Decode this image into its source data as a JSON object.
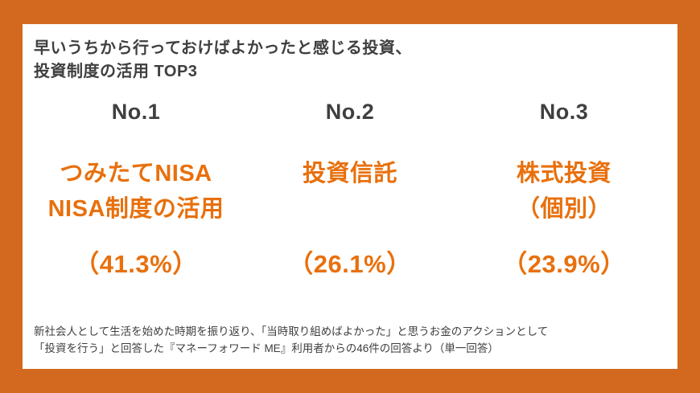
{
  "colors": {
    "frame": "#d2691e",
    "accent": "#e8700d",
    "text-dark": "#3f3f3f"
  },
  "title": {
    "line1": "早いうちから行っておけばよかったと感じる投資、",
    "line2": "投資制度の活用 TOP3"
  },
  "columns": [
    {
      "rank": "No.1",
      "name_line1": "つみたてNISA",
      "name_line2": "NISA制度の活用",
      "value": "（41.3%）"
    },
    {
      "rank": "No.2",
      "name_line1": "投資信託",
      "name_line2": "",
      "value": "（26.1%）"
    },
    {
      "rank": "No.3",
      "name_line1": "株式投資",
      "name_line2": "（個別）",
      "value": "（23.9%）"
    }
  ],
  "footnote": {
    "line1": "新社会人として生活を始めた時期を振り返り、「当時取り組めばよかった」と思うお金のアクションとして",
    "line2": "「投資を行う」と回答した『マネーフォワード ME』利用者からの46件の回答より（単一回答）"
  },
  "chart_data": {
    "type": "table",
    "title": "早いうちから行っておけばよかったと感じる投資、投資制度の活用 TOP3",
    "categories": [
      "つみたてNISA NISA制度の活用",
      "投資信託",
      "株式投資（個別）"
    ],
    "ranks": [
      "No.1",
      "No.2",
      "No.3"
    ],
    "values": [
      41.3,
      26.1,
      23.9
    ],
    "unit": "%",
    "note": "新社会人として生活を始めた時期を振り返り、「当時取り組めばよかった」と思うお金のアクションとして「投資を行う」と回答した『マネーフォワード ME』利用者からの46件の回答より（単一回答）"
  }
}
